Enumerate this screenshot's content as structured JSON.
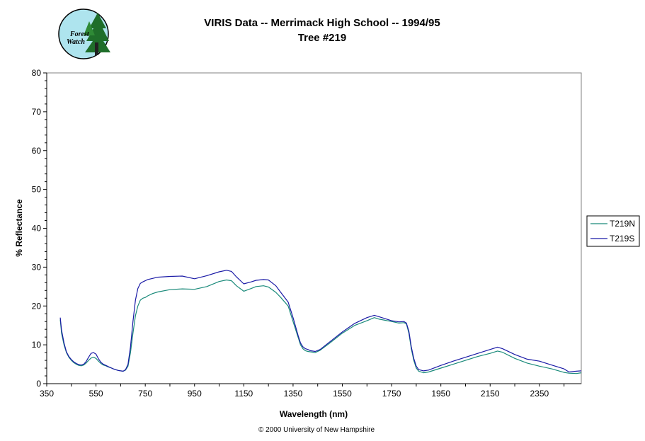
{
  "logo": {
    "line1": "Forest",
    "line2": "Watch"
  },
  "footer": "© 2000 University of New Hampshire",
  "colors": {
    "T219N": "#1a8a7a",
    "T219S": "#1a1aa6"
  },
  "chart_data": {
    "type": "line",
    "title": "VIRIS Data -- Merrimack High School -- 1994/95",
    "subtitle": "Tree #219",
    "xlabel": "Wavelength (nm)",
    "ylabel": "% Reflectance",
    "xlim": [
      350,
      2520
    ],
    "ylim": [
      0,
      80
    ],
    "xticks": [
      "350",
      "550",
      "750",
      "950",
      "1150",
      "1350",
      "1550",
      "1750",
      "1950",
      "2150",
      "2350"
    ],
    "yticks": [
      "0",
      "10",
      "20",
      "30",
      "40",
      "50",
      "60",
      "70",
      "80"
    ],
    "legend_position": "right",
    "grid": false,
    "series": [
      {
        "name": "T219N",
        "x": [
          405,
          410,
          420,
          430,
          440,
          450,
          460,
          470,
          480,
          490,
          500,
          510,
          520,
          530,
          540,
          550,
          560,
          570,
          580,
          590,
          600,
          610,
          620,
          630,
          640,
          650,
          660,
          670,
          680,
          690,
          700,
          710,
          720,
          730,
          740,
          750,
          760,
          780,
          800,
          850,
          900,
          950,
          1000,
          1050,
          1080,
          1100,
          1120,
          1150,
          1180,
          1200,
          1230,
          1250,
          1280,
          1300,
          1330,
          1350,
          1370,
          1380,
          1390,
          1400,
          1410,
          1420,
          1440,
          1460,
          1500,
          1550,
          1600,
          1650,
          1680,
          1700,
          1750,
          1780,
          1800,
          1810,
          1820,
          1830,
          1840,
          1850,
          1860,
          1880,
          1900,
          1950,
          2000,
          2050,
          2100,
          2150,
          2180,
          2200,
          2250,
          2300,
          2350,
          2400,
          2450,
          2470,
          2500,
          2520
        ],
        "y": [
          16.5,
          13,
          10,
          8,
          6.8,
          6,
          5.4,
          5,
          4.7,
          4.6,
          4.8,
          5.3,
          6.0,
          6.6,
          6.8,
          6.5,
          5.8,
          5.2,
          4.8,
          4.6,
          4.3,
          4.1,
          3.8,
          3.6,
          3.4,
          3.3,
          3.2,
          3.5,
          4.5,
          8,
          13,
          17.5,
          20,
          21.5,
          22,
          22.2,
          22.6,
          23.2,
          23.6,
          24.2,
          24.4,
          24.3,
          25,
          26.3,
          26.7,
          26.5,
          25.2,
          23.8,
          24.5,
          25,
          25.2,
          24.9,
          23.5,
          22.2,
          20,
          16,
          12,
          10,
          9,
          8.5,
          8.3,
          8.2,
          8,
          8.6,
          10.5,
          13,
          15,
          16.2,
          17,
          16.6,
          16,
          15.6,
          15.7,
          15.4,
          13,
          9,
          6,
          4,
          3.2,
          2.8,
          3,
          4,
          5,
          6,
          7,
          7.8,
          8.4,
          8.1,
          6.5,
          5.3,
          4.5,
          3.8,
          2.9,
          2.7,
          2.6,
          2.8
        ]
      },
      {
        "name": "T219S",
        "x": [
          405,
          410,
          420,
          430,
          440,
          450,
          460,
          470,
          480,
          490,
          500,
          510,
          520,
          530,
          540,
          550,
          560,
          570,
          580,
          590,
          600,
          610,
          620,
          630,
          640,
          650,
          660,
          670,
          680,
          690,
          700,
          710,
          720,
          730,
          740,
          750,
          760,
          780,
          800,
          850,
          900,
          950,
          1000,
          1050,
          1080,
          1100,
          1120,
          1150,
          1180,
          1200,
          1230,
          1250,
          1280,
          1300,
          1330,
          1350,
          1370,
          1380,
          1390,
          1400,
          1410,
          1420,
          1440,
          1460,
          1500,
          1550,
          1600,
          1650,
          1680,
          1700,
          1750,
          1780,
          1800,
          1810,
          1820,
          1830,
          1840,
          1850,
          1860,
          1880,
          1900,
          1950,
          2000,
          2050,
          2100,
          2150,
          2180,
          2200,
          2250,
          2300,
          2350,
          2400,
          2450,
          2470,
          2500,
          2520
        ],
        "y": [
          17,
          13.8,
          10.5,
          8.2,
          7,
          6.2,
          5.6,
          5.2,
          4.9,
          4.8,
          5.0,
          5.7,
          6.8,
          7.8,
          8.0,
          7.6,
          6.4,
          5.5,
          5.0,
          4.7,
          4.4,
          4.1,
          3.8,
          3.6,
          3.4,
          3.3,
          3.2,
          3.6,
          5,
          9.5,
          16,
          21.5,
          24.5,
          25.8,
          26.2,
          26.5,
          26.8,
          27.1,
          27.4,
          27.6,
          27.7,
          27,
          27.8,
          28.8,
          29.2,
          28.9,
          27.5,
          25.7,
          26.2,
          26.6,
          26.8,
          26.7,
          25.2,
          23.5,
          21,
          17,
          12.5,
          10.5,
          9.5,
          9,
          8.8,
          8.5,
          8.3,
          8.8,
          10.8,
          13.3,
          15.5,
          17,
          17.6,
          17.2,
          16.2,
          15.9,
          16,
          15.6,
          13.5,
          9.5,
          6.5,
          4.5,
          3.6,
          3.3,
          3.5,
          4.7,
          5.8,
          6.8,
          7.8,
          8.8,
          9.4,
          9,
          7.5,
          6.3,
          5.8,
          4.8,
          3.8,
          3.0,
          3.2,
          3.3
        ]
      }
    ]
  }
}
